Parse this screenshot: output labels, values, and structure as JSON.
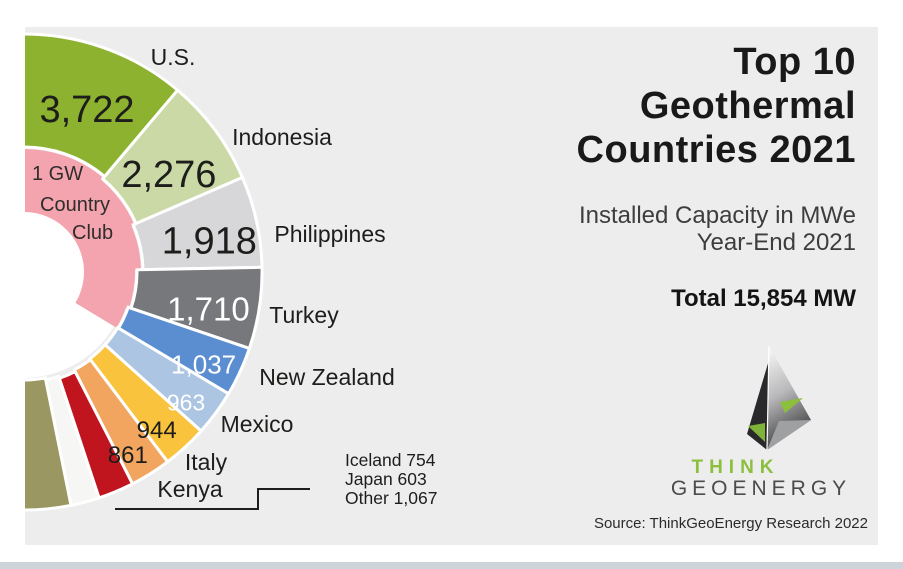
{
  "page": {
    "background": "#ffffff",
    "panel_background": "#EDEDEE",
    "bottom_bar_color": "#ccd4da"
  },
  "header": {
    "title_lines": [
      "Top 10",
      "Geothermal",
      "Countries 2021"
    ],
    "subtitle_lines": [
      "Installed Capacity in MWe",
      "Year-End 2021"
    ]
  },
  "chart_data": {
    "type": "pie",
    "title": "Top 10 Geothermal Countries 2021",
    "subtitle": "Installed Capacity in MWe Year-End 2021",
    "unit": "MWe",
    "total_mw": 15854,
    "total_label": "Total 15,854 MW",
    "center_label_lines": [
      "1 GW",
      "Country",
      "Club"
    ],
    "club_ring_color": "#F4A4AE",
    "legend": "none",
    "segments": [
      {
        "name": "U.S.",
        "value": 3722,
        "value_label": "3,722",
        "color": "#8CB22F",
        "club": true
      },
      {
        "name": "Indonesia",
        "value": 2276,
        "value_label": "2,276",
        "color": "#CBD9A6",
        "club": true
      },
      {
        "name": "Philippines",
        "value": 1918,
        "value_label": "1,918",
        "color": "#D7D7D9",
        "club": true
      },
      {
        "name": "Turkey",
        "value": 1710,
        "value_label": "1,710",
        "color": "#77787B",
        "club": true
      },
      {
        "name": "New Zealand",
        "value": 1037,
        "value_label": "1,037",
        "color": "#5B8ED1",
        "club": true
      },
      {
        "name": "Mexico",
        "value": 963,
        "value_label": "963",
        "color": "#ABC5E3",
        "club": false
      },
      {
        "name": "Italy",
        "value": 944,
        "value_label": "944",
        "color": "#FAC33D",
        "club": false
      },
      {
        "name": "Kenya",
        "value": 861,
        "value_label": "861",
        "color": "#F1A55F",
        "club": false
      },
      {
        "name": "Iceland",
        "value": 754,
        "value_label": "754",
        "color": "#C0151F",
        "club": false
      },
      {
        "name": "Japan",
        "value": 603,
        "value_label": "603",
        "color": "#F6F6F4",
        "club": false
      },
      {
        "name": "Other",
        "value": 1067,
        "value_label": "1,067",
        "color": "#9B9762",
        "club": false
      }
    ],
    "small_segment_labels": [
      "Iceland 754",
      "Japan 603",
      "Other 1,067"
    ],
    "layout": {
      "start_angle_deg": -3,
      "total_span_deg": 184,
      "grid": false,
      "legend_position": "none"
    }
  },
  "footer": {
    "brand_top": "THINK",
    "brand_bottom": "GEOENERGY",
    "source": "Source: ThinkGeoEnergy Research 2022"
  }
}
